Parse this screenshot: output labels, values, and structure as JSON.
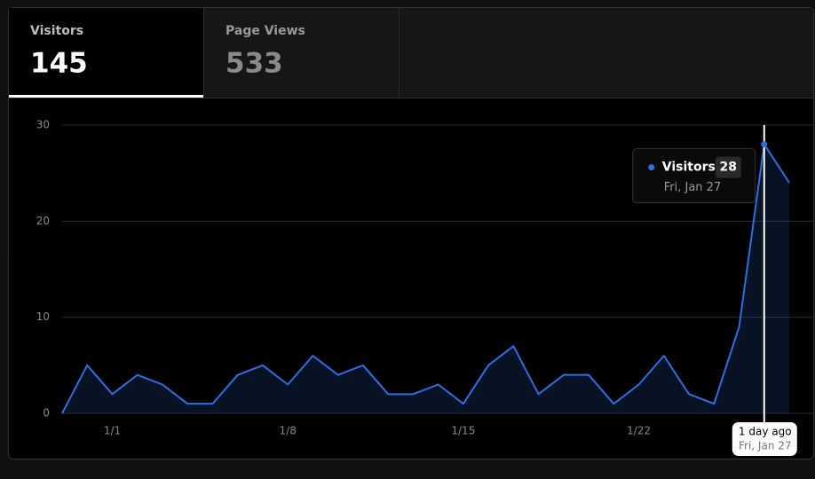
{
  "tabs": [
    {
      "label": "Visitors",
      "value": 145
    },
    {
      "label": "Page Views",
      "value": 533
    }
  ],
  "chart_data": {
    "type": "area",
    "categories": [
      null,
      null,
      "1/1",
      null,
      null,
      null,
      null,
      null,
      null,
      "1/8",
      null,
      null,
      null,
      null,
      null,
      null,
      "1/15",
      null,
      null,
      null,
      null,
      null,
      null,
      "1/22",
      null,
      null,
      null,
      null,
      null,
      null
    ],
    "series": [
      {
        "name": "Visitors",
        "color": "#2a6ee8",
        "values": [
          0,
          5,
          2,
          4,
          3,
          1,
          1,
          4,
          5,
          3,
          6,
          4,
          5,
          2,
          2,
          3,
          1,
          5,
          7,
          2,
          4,
          4,
          1,
          3,
          6,
          2,
          1,
          9,
          28,
          24
        ]
      }
    ],
    "ylim": [
      0,
      30
    ],
    "yticks": [
      0,
      10,
      20,
      30
    ],
    "grid": true
  },
  "tooltip": {
    "date": "Fri, Jan 27",
    "relative": "1 day ago"
  }
}
